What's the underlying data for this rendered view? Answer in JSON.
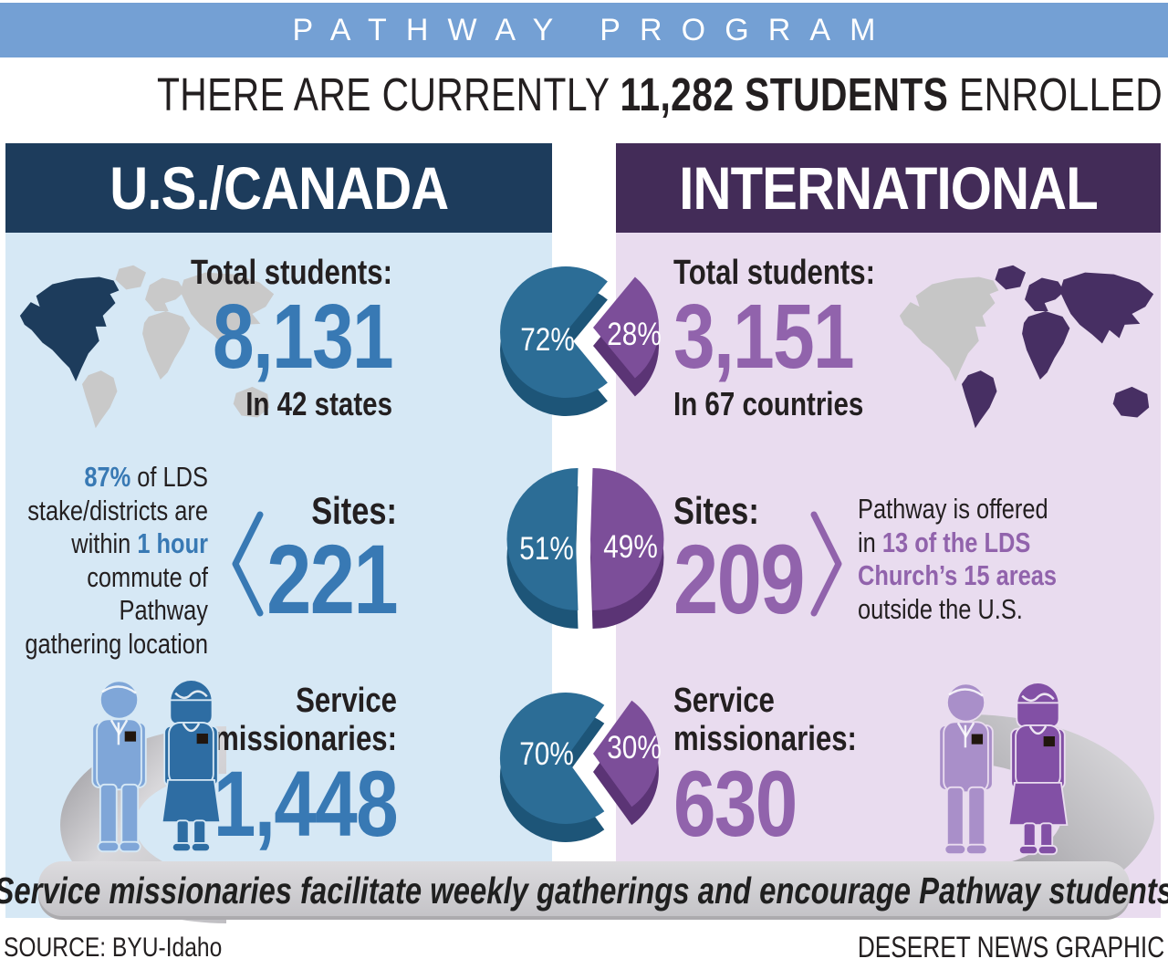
{
  "topbar": {
    "title": "PATHWAY PROGRAM"
  },
  "headline": {
    "segments": [
      {
        "t": "THERE ARE CURRENTLY "
      },
      {
        "t": "11,282 STUDENTS",
        "hl": true
      },
      {
        "t": " ENROLLED WORLDWIDE"
      }
    ]
  },
  "columns": {
    "us": {
      "header": "U.S./CANADA",
      "total_label": "Total students:",
      "total_value": "8,131",
      "total_sub": "In 42 states",
      "callout_segments": [
        {
          "t": "87%",
          "hl": true
        },
        {
          "t": " of LDS stake/districts are within "
        },
        {
          "t": "1 hour",
          "hl": true
        },
        {
          "t": " commute of Pathway gathering location"
        }
      ],
      "sites_label": "Sites:",
      "sites_value": "221",
      "missionaries_label": "Service missionaries:",
      "missionaries_value": "1,448"
    },
    "intl": {
      "header": "INTERNATIONAL",
      "total_label": "Total students:",
      "total_value": "3,151",
      "total_sub": "In 67 countries",
      "callout_segments": [
        {
          "t": "Pathway is offered in "
        },
        {
          "t": "13 of the LDS Church’s 15 areas",
          "hl": true
        },
        {
          "t": " outside the U.S."
        }
      ],
      "sites_label": "Sites:",
      "sites_value": "209",
      "missionaries_label": "Service missionaries:",
      "missionaries_value": "630"
    }
  },
  "ribbon": {
    "text": "Service missionaries facilitate weekly gatherings and encourage Pathway students"
  },
  "footer": {
    "source": "SOURCE: BYU-Idaho",
    "credit": "DESERET NEWS GRAPHIC"
  },
  "colors": {
    "topbar_blue": "#74a0d4",
    "us_header_navy": "#1d3c5c",
    "intl_header_purple": "#432c58",
    "us_panel": "#d6e8f5",
    "intl_panel": "#e9dcef",
    "us_accent": "#3879b4",
    "intl_accent": "#9163ac",
    "pie_blue": "#2c6d96",
    "pie_blue_side": "#1d5578",
    "pie_purple": "#7c4e99",
    "pie_purple_side": "#5b3475",
    "ribbon_gray": "#c9c8cc"
  },
  "chart_data": [
    {
      "type": "pie",
      "title": "Total students",
      "series": [
        {
          "name": "U.S./Canada",
          "value": 8131,
          "pct": 72
        },
        {
          "name": "International",
          "value": 3151,
          "pct": 28
        }
      ],
      "labels": [
        "72%",
        "28%"
      ]
    },
    {
      "type": "pie",
      "title": "Sites",
      "series": [
        {
          "name": "U.S./Canada",
          "value": 221,
          "pct": 51
        },
        {
          "name": "International",
          "value": 209,
          "pct": 49
        }
      ],
      "labels": [
        "51%",
        "49%"
      ]
    },
    {
      "type": "pie",
      "title": "Service missionaries",
      "series": [
        {
          "name": "U.S./Canada",
          "value": 1448,
          "pct": 70
        },
        {
          "name": "International",
          "value": 630,
          "pct": 30
        }
      ],
      "labels": [
        "70%",
        "30%"
      ]
    }
  ]
}
